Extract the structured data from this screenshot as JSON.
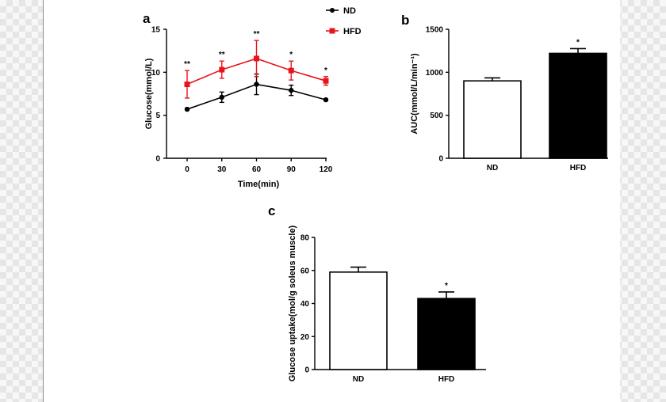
{
  "figure": {
    "bg": "#ffffff",
    "ink": "#000000",
    "hfd_color": "#e8141c",
    "nd_color": "#000000"
  },
  "chart_data": [
    {
      "panel": "a",
      "type": "line",
      "xlabel": "Time(min)",
      "ylabel": "Glucose(mmol/L)",
      "x": [
        0,
        30,
        60,
        90,
        120
      ],
      "xlim": [
        0,
        120
      ],
      "ylim": [
        0,
        15
      ],
      "xticks": [
        0,
        30,
        60,
        90,
        120
      ],
      "yticks": [
        0,
        5,
        10,
        15
      ],
      "legend_position": "top-right",
      "series": [
        {
          "name": "ND",
          "color": "#000000",
          "marker": "circle",
          "values": [
            5.7,
            7.1,
            8.6,
            7.9,
            6.8
          ],
          "errors": [
            0.1,
            0.6,
            1.2,
            0.6,
            0.1
          ]
        },
        {
          "name": "HFD",
          "color": "#e8141c",
          "marker": "square",
          "values": [
            8.6,
            10.3,
            11.6,
            10.2,
            9.0
          ],
          "errors": [
            1.6,
            1.0,
            2.1,
            1.1,
            0.5
          ]
        }
      ],
      "significance": [
        "**",
        "**",
        "**",
        "*",
        "*"
      ]
    },
    {
      "panel": "b",
      "type": "bar",
      "ylabel": "AUC(mmol/L/min⁻¹)",
      "categories": [
        "ND",
        "HFD"
      ],
      "values": [
        900,
        1220
      ],
      "errors": [
        35,
        55
      ],
      "fills": [
        "#ffffff",
        "#000000"
      ],
      "ylim": [
        0,
        1500
      ],
      "yticks": [
        0,
        500,
        1000,
        1500
      ],
      "significance": [
        "",
        "*"
      ]
    },
    {
      "panel": "c",
      "type": "bar",
      "ylabel": "Glucose uptake(mol/g soleus muscle)",
      "categories": [
        "ND",
        "HFD"
      ],
      "values": [
        59,
        43
      ],
      "errors": [
        3,
        4
      ],
      "fills": [
        "#ffffff",
        "#000000"
      ],
      "ylim": [
        0,
        80
      ],
      "yticks": [
        0,
        20,
        40,
        60,
        80
      ],
      "significance": [
        "",
        "*"
      ]
    }
  ]
}
